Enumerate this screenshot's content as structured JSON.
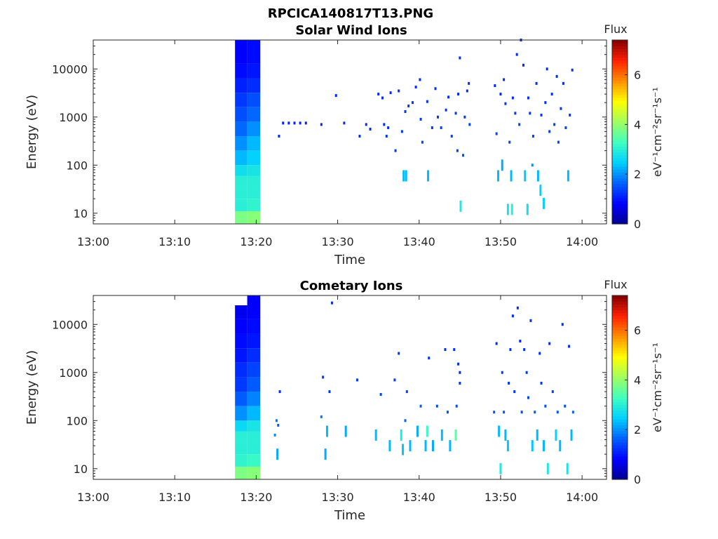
{
  "figure_title": "RPCICA140817T13.PNG",
  "colormap": [
    "#00008f",
    "#0000ff",
    "#0060ff",
    "#00d0ff",
    "#40ffc0",
    "#a0ff60",
    "#ffff00",
    "#ff9000",
    "#ff2000",
    "#800000"
  ],
  "chart_data": [
    {
      "type": "heatmap",
      "title": "Solar Wind Ions",
      "xlabel": "Time",
      "ylabel": "Energy (eV)",
      "x_ticks": [
        "13:00",
        "13:10",
        "13:20",
        "13:30",
        "13:40",
        "13:50",
        "14:00"
      ],
      "xlim": [
        0,
        63
      ],
      "y_ticks": [
        "10",
        "100",
        "1000",
        "10000"
      ],
      "ylim": [
        6,
        40000
      ],
      "y_scale": "log",
      "colorbar": {
        "label": "Flux",
        "units": "eV⁻¹cm⁻²sr⁻¹s⁻¹",
        "range": [
          0,
          7.4
        ],
        "ticks": [
          "0",
          "2",
          "4",
          "6"
        ]
      },
      "spectrum": [
        {
          "t0": 17.4,
          "t1": 18.9,
          "values": [
            [
              6,
              11,
              3.8
            ],
            [
              11,
              20,
              3.0
            ],
            [
              20,
              35,
              3.0
            ],
            [
              35,
              60,
              3.0
            ],
            [
              60,
              100,
              2.7
            ],
            [
              100,
              200,
              2.3
            ],
            [
              200,
              400,
              2.0
            ],
            [
              400,
              800,
              1.7
            ],
            [
              800,
              1600,
              1.5
            ],
            [
              1600,
              3200,
              1.3
            ],
            [
              3200,
              6400,
              1.1
            ],
            [
              6400,
              13000,
              0.9
            ],
            [
              13000,
              40000,
              0.8
            ]
          ]
        },
        {
          "t0": 18.9,
          "t1": 20.5,
          "values": [
            [
              6,
              11,
              3.9
            ],
            [
              11,
              20,
              3.1
            ],
            [
              20,
              35,
              3.0
            ],
            [
              35,
              60,
              3.0
            ],
            [
              60,
              100,
              2.8
            ],
            [
              100,
              200,
              2.5
            ],
            [
              200,
              400,
              2.3
            ],
            [
              400,
              800,
              2.0
            ],
            [
              800,
              1600,
              1.7
            ],
            [
              1600,
              3200,
              1.5
            ],
            [
              3200,
              6400,
              1.2
            ],
            [
              6400,
              13000,
              1.0
            ],
            [
              13000,
              40000,
              0.9
            ]
          ]
        }
      ],
      "points": [
        [
          22.8,
          400,
          1.2
        ],
        [
          23.3,
          750,
          1.1
        ],
        [
          24.0,
          750,
          1.1
        ],
        [
          24.7,
          750,
          1.1
        ],
        [
          25.4,
          750,
          1.1
        ],
        [
          26.1,
          750,
          1.1
        ],
        [
          28.0,
          700,
          1.2
        ],
        [
          29.8,
          2800,
          1.2
        ],
        [
          30.8,
          750,
          1.2
        ],
        [
          32.7,
          400,
          1.2
        ],
        [
          33.5,
          700,
          1.2
        ],
        [
          34.0,
          560,
          1.2
        ],
        [
          35.0,
          3000,
          1.2
        ],
        [
          35.5,
          2500,
          1.2
        ],
        [
          35.7,
          700,
          1.2
        ],
        [
          36.2,
          600,
          1.2
        ],
        [
          36.5,
          3200,
          1.2
        ],
        [
          36.0,
          400,
          1.3
        ],
        [
          37.1,
          200,
          1.3
        ],
        [
          37.5,
          3500,
          1.2
        ],
        [
          37.9,
          500,
          1.3
        ],
        [
          38.1,
          60,
          2.3
        ],
        [
          38.3,
          1300,
          1.3
        ],
        [
          38.4,
          60,
          2.3
        ],
        [
          38.7,
          1700,
          1.3
        ],
        [
          39.2,
          2000,
          1.3
        ],
        [
          39.6,
          4200,
          1.2
        ],
        [
          40.1,
          6000,
          1.2
        ],
        [
          40.2,
          900,
          1.3
        ],
        [
          40.4,
          300,
          1.4
        ],
        [
          41.0,
          2100,
          1.3
        ],
        [
          41.1,
          60,
          2.3
        ],
        [
          41.6,
          600,
          1.3
        ],
        [
          42.0,
          3900,
          1.2
        ],
        [
          42.3,
          1000,
          1.3
        ],
        [
          42.7,
          600,
          1.4
        ],
        [
          43.3,
          1400,
          1.3
        ],
        [
          43.6,
          2600,
          1.2
        ],
        [
          44.0,
          400,
          1.4
        ],
        [
          44.5,
          1200,
          1.3
        ],
        [
          44.8,
          3000,
          1.2
        ],
        [
          45.0,
          17000,
          1.2
        ],
        [
          44.7,
          200,
          1.4
        ],
        [
          45.1,
          14,
          2.9
        ],
        [
          45.4,
          160,
          1.5
        ],
        [
          45.6,
          1000,
          1.3
        ],
        [
          45.9,
          3500,
          1.2
        ],
        [
          46.1,
          5000,
          1.2
        ],
        [
          46.2,
          700,
          1.4
        ],
        [
          49.3,
          4500,
          1.2
        ],
        [
          49.5,
          450,
          1.4
        ],
        [
          49.7,
          60,
          2.3
        ],
        [
          50.0,
          3000,
          1.2
        ],
        [
          50.2,
          100,
          2.2
        ],
        [
          50.4,
          6000,
          1.2
        ],
        [
          50.6,
          1900,
          1.3
        ],
        [
          50.9,
          12,
          2.8
        ],
        [
          51.1,
          300,
          1.4
        ],
        [
          51.3,
          60,
          2.3
        ],
        [
          51.4,
          12,
          3.0
        ],
        [
          51.5,
          2500,
          1.2
        ],
        [
          51.8,
          1200,
          1.3
        ],
        [
          52.0,
          20000,
          1.2
        ],
        [
          52.3,
          700,
          1.4
        ],
        [
          52.5,
          40000,
          1.2
        ],
        [
          52.8,
          12000,
          1.2
        ],
        [
          53.0,
          60,
          2.4
        ],
        [
          53.3,
          12,
          2.7
        ],
        [
          53.4,
          2500,
          1.2
        ],
        [
          53.6,
          1200,
          1.3
        ],
        [
          53.9,
          100,
          2.0
        ],
        [
          54.0,
          400,
          1.4
        ],
        [
          54.4,
          5000,
          1.2
        ],
        [
          54.6,
          60,
          2.3
        ],
        [
          54.9,
          30,
          2.5
        ],
        [
          55.0,
          1100,
          1.3
        ],
        [
          55.3,
          16,
          2.5
        ],
        [
          55.5,
          2000,
          1.2
        ],
        [
          55.7,
          10000,
          1.2
        ],
        [
          56.0,
          500,
          1.4
        ],
        [
          56.3,
          3000,
          1.2
        ],
        [
          56.6,
          700,
          1.4
        ],
        [
          56.9,
          7000,
          1.2
        ],
        [
          57.1,
          300,
          1.4
        ],
        [
          57.4,
          1500,
          1.3
        ],
        [
          57.7,
          5000,
          1.2
        ],
        [
          58.0,
          600,
          1.4
        ],
        [
          58.3,
          60,
          2.3
        ],
        [
          58.5,
          1100,
          1.3
        ],
        [
          58.8,
          9500,
          1.2
        ]
      ]
    },
    {
      "type": "heatmap",
      "title": "Cometary Ions",
      "xlabel": "Time",
      "ylabel": "Energy (eV)",
      "x_ticks": [
        "13:00",
        "13:10",
        "13:20",
        "13:30",
        "13:40",
        "13:50",
        "14:00"
      ],
      "xlim": [
        0,
        63
      ],
      "y_ticks": [
        "10",
        "100",
        "1000",
        "10000"
      ],
      "ylim": [
        6,
        40000
      ],
      "y_scale": "log",
      "colorbar": {
        "label": "Flux",
        "units": "eV⁻¹cm⁻²sr⁻¹s⁻¹",
        "range": [
          0,
          7.4
        ],
        "ticks": [
          "0",
          "2",
          "4",
          "6"
        ]
      },
      "spectrum": [
        {
          "t0": 17.4,
          "t1": 18.9,
          "values": [
            [
              6,
              11,
              3.8
            ],
            [
              11,
              20,
              3.1
            ],
            [
              20,
              35,
              3.0
            ],
            [
              35,
              60,
              3.0
            ],
            [
              60,
              100,
              2.6
            ],
            [
              100,
              200,
              2.0
            ],
            [
              200,
              400,
              1.6
            ],
            [
              400,
              800,
              1.3
            ],
            [
              800,
              1600,
              1.2
            ],
            [
              1600,
              3200,
              1.0
            ],
            [
              3200,
              6400,
              0.9
            ],
            [
              6400,
              13000,
              0.8
            ],
            [
              13000,
              25000,
              0.7
            ]
          ]
        },
        {
          "t0": 18.9,
          "t1": 20.5,
          "values": [
            [
              6,
              11,
              3.9
            ],
            [
              11,
              20,
              3.2
            ],
            [
              20,
              35,
              3.0
            ],
            [
              35,
              60,
              3.0
            ],
            [
              60,
              100,
              2.8
            ],
            [
              100,
              200,
              2.3
            ],
            [
              200,
              400,
              1.9
            ],
            [
              400,
              800,
              1.6
            ],
            [
              800,
              1600,
              1.4
            ],
            [
              1600,
              3200,
              1.2
            ],
            [
              3200,
              6400,
              1.0
            ],
            [
              6400,
              13000,
              0.9
            ],
            [
              13000,
              40000,
              0.8
            ]
          ]
        }
      ],
      "points": [
        [
          22.5,
          100,
          1.8
        ],
        [
          22.7,
          80,
          1.6
        ],
        [
          22.9,
          400,
          1.2
        ],
        [
          22.3,
          50,
          2.0
        ],
        [
          22.6,
          20,
          2.2
        ],
        [
          28.0,
          120,
          1.8
        ],
        [
          28.2,
          800,
          1.3
        ],
        [
          28.5,
          20,
          2.2
        ],
        [
          28.7,
          60,
          2.3
        ],
        [
          29.0,
          400,
          1.3
        ],
        [
          29.3,
          28000,
          1.2
        ],
        [
          31.0,
          60,
          2.2
        ],
        [
          32.4,
          700,
          1.3
        ],
        [
          34.7,
          50,
          2.3
        ],
        [
          35.3,
          350,
          1.4
        ],
        [
          36.4,
          30,
          2.3
        ],
        [
          37.0,
          700,
          1.3
        ],
        [
          37.5,
          2500,
          1.3
        ],
        [
          37.8,
          50,
          2.9
        ],
        [
          38.0,
          25,
          2.4
        ],
        [
          38.3,
          100,
          1.7
        ],
        [
          38.5,
          400,
          1.4
        ],
        [
          38.9,
          30,
          2.3
        ],
        [
          39.8,
          60,
          2.2
        ],
        [
          40.2,
          200,
          1.6
        ],
        [
          40.8,
          30,
          2.3
        ],
        [
          41.0,
          60,
          3.2
        ],
        [
          41.2,
          2000,
          1.3
        ],
        [
          41.7,
          30,
          2.2
        ],
        [
          42.2,
          200,
          1.5
        ],
        [
          42.8,
          50,
          2.3
        ],
        [
          43.2,
          3000,
          1.2
        ],
        [
          43.5,
          150,
          1.5
        ],
        [
          43.8,
          30,
          2.3
        ],
        [
          44.3,
          3000,
          1.2
        ],
        [
          44.5,
          50,
          3.5
        ],
        [
          44.6,
          200,
          1.5
        ],
        [
          44.8,
          1500,
          1.2
        ],
        [
          45.0,
          600,
          1.3
        ],
        [
          45.0,
          1000,
          1.2
        ],
        [
          49.2,
          150,
          1.6
        ],
        [
          49.5,
          4000,
          1.2
        ],
        [
          49.8,
          60,
          2.3
        ],
        [
          50.0,
          10,
          2.9
        ],
        [
          50.2,
          1000,
          1.3
        ],
        [
          50.4,
          150,
          1.6
        ],
        [
          50.6,
          50,
          2.3
        ],
        [
          50.9,
          30,
          2.4
        ],
        [
          51.0,
          600,
          1.3
        ],
        [
          51.2,
          3000,
          1.2
        ],
        [
          51.5,
          15000,
          1.2
        ],
        [
          51.7,
          400,
          1.3
        ],
        [
          52.1,
          22000,
          1.2
        ],
        [
          52.4,
          4500,
          1.2
        ],
        [
          52.6,
          150,
          1.5
        ],
        [
          52.9,
          3000,
          1.2
        ],
        [
          53.2,
          1000,
          1.3
        ],
        [
          53.4,
          300,
          1.4
        ],
        [
          53.7,
          12000,
          1.2
        ],
        [
          53.9,
          30,
          2.4
        ],
        [
          54.2,
          150,
          1.6
        ],
        [
          54.5,
          50,
          2.3
        ],
        [
          54.8,
          2500,
          1.2
        ],
        [
          55.0,
          600,
          1.3
        ],
        [
          55.3,
          30,
          2.3
        ],
        [
          55.5,
          200,
          1.5
        ],
        [
          55.8,
          10,
          2.9
        ],
        [
          56.0,
          4000,
          1.2
        ],
        [
          56.4,
          400,
          1.4
        ],
        [
          56.8,
          50,
          2.5
        ],
        [
          57.0,
          150,
          1.6
        ],
        [
          57.3,
          30,
          2.3
        ],
        [
          57.6,
          10000,
          1.2
        ],
        [
          57.9,
          200,
          1.5
        ],
        [
          58.2,
          10,
          2.8
        ],
        [
          58.4,
          3500,
          1.2
        ],
        [
          58.7,
          50,
          2.3
        ],
        [
          58.9,
          150,
          1.7
        ]
      ]
    }
  ]
}
